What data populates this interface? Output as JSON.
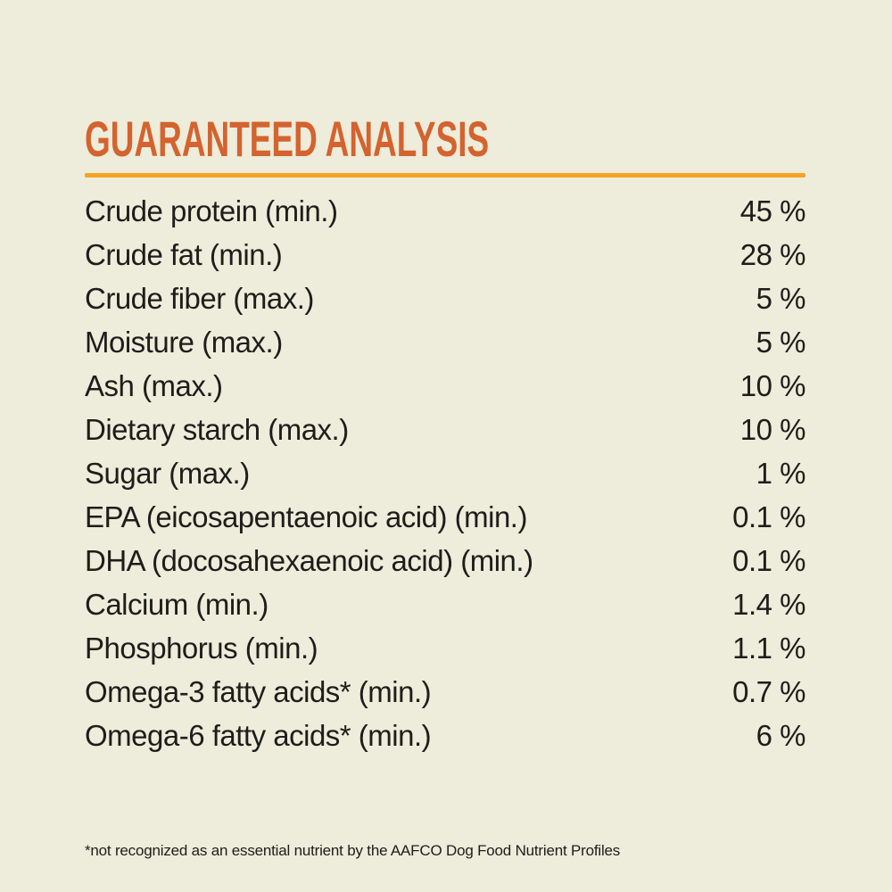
{
  "colors": {
    "bg": "#eeecda",
    "title": "#d4632f",
    "rule": "#f5a41f",
    "text": "#1d1d1b"
  },
  "header": {
    "title": "GUARANTEED ANALYSIS"
  },
  "table": {
    "rows": [
      {
        "label": "Crude protein (min.)",
        "value": "45 %"
      },
      {
        "label": "Crude fat (min.)",
        "value": "28 %"
      },
      {
        "label": "Crude fiber (max.)",
        "value": "5 %"
      },
      {
        "label": "Moisture (max.)",
        "value": "5 %"
      },
      {
        "label": "Ash (max.)",
        "value": "10 %"
      },
      {
        "label": "Dietary starch (max.)",
        "value": "10 %"
      },
      {
        "label": "Sugar (max.)",
        "value": "1 %"
      },
      {
        "label": "EPA (eicosapentaenoic acid) (min.)",
        "value": "0.1 %"
      },
      {
        "label": "DHA (docosahexaenoic acid) (min.)",
        "value": "0.1 %"
      },
      {
        "label": "Calcium (min.)",
        "value": "1.4 %"
      },
      {
        "label": "Phosphorus (min.)",
        "value": "1.1 %"
      },
      {
        "label": "Omega-3 fatty acids* (min.)",
        "value": "0.7 %"
      },
      {
        "label": "Omega-6 fatty acids* (min.)",
        "value": "6 %"
      }
    ]
  },
  "footnote": {
    "text": "*not recognized as an essential nutrient by the AAFCO Dog Food Nutrient Profiles"
  }
}
